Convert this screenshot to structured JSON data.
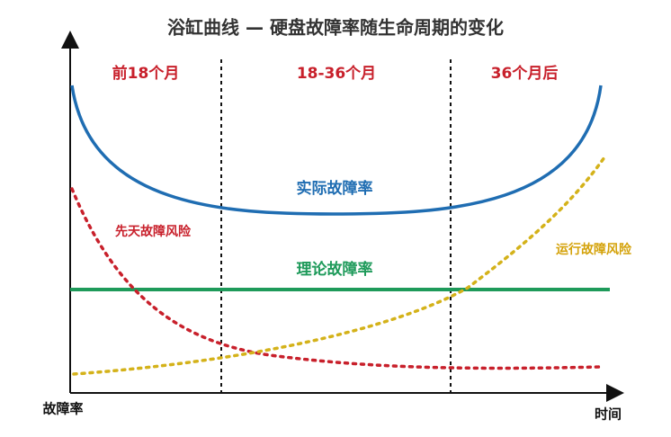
{
  "title": "浴缸曲线 — 硬盘故障率随生命周期的变化",
  "y_axis_label": "故障率",
  "x_axis_label": "时间",
  "periods": [
    "前18个月",
    "18-36个月",
    "36个月后"
  ],
  "curves": {
    "actual": "实际故障率",
    "infant": "先天故障风险",
    "theoretical": "理论故障率",
    "wearout": "运行故障风险"
  }
}
